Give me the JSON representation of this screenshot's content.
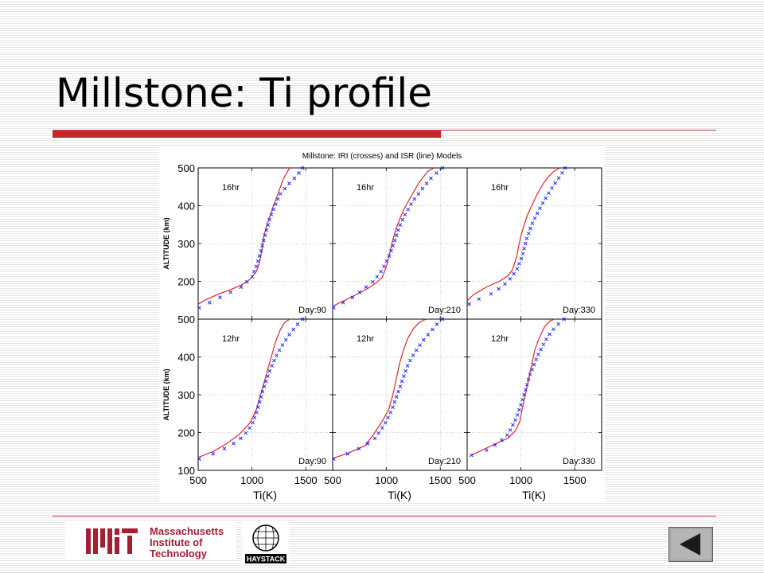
{
  "slide": {
    "title": "Millstone: Ti profile"
  },
  "logos": {
    "mit_text": [
      "Massachusetts",
      "Institute of",
      "Technology"
    ],
    "haystack_text": "HAYSTACK"
  },
  "navigation": {
    "back_icon": "triangle-left-icon"
  },
  "colors": {
    "title_rule": "#c0292b",
    "isr_line": "#e0252b",
    "iri_crosses": "#1a2cff",
    "mit_red": "#a31f34"
  },
  "chart_data": {
    "type": "line",
    "title": "Millstone: IRI (crosses) and ISR (line) Models",
    "ylabel": "ALTITUDE (km)",
    "xlabel": "Ti(K)",
    "xlim": [
      500,
      1750
    ],
    "ylim": [
      100,
      500
    ],
    "x_ticks": [
      500,
      1000,
      1500
    ],
    "y_ticks": [
      100,
      200,
      300,
      400,
      500
    ],
    "grid": true,
    "panels": [
      {
        "hour_label": "16hr",
        "day_label": "Day:90",
        "isr": {
          "x": [
            505,
            560,
            680,
            800,
            900,
            980,
            1040,
            1070,
            1090,
            1110,
            1140,
            1170,
            1200,
            1240,
            1290,
            1350
          ],
          "y": [
            140,
            150,
            165,
            178,
            190,
            205,
            225,
            250,
            280,
            320,
            350,
            375,
            400,
            430,
            470,
            500
          ]
        },
        "iri": {
          "x": [
            510,
            650,
            900,
            1000,
            1040,
            1080,
            1110,
            1140,
            1170,
            1200,
            1260,
            1350,
            1420,
            1470
          ],
          "y": [
            130,
            150,
            185,
            210,
            240,
            275,
            310,
            340,
            370,
            390,
            430,
            460,
            480,
            500
          ]
        }
      },
      {
        "hour_label": "16hr",
        "day_label": "Day:210",
        "isr": {
          "x": [
            505,
            600,
            720,
            820,
            900,
            960,
            1000,
            1030,
            1060,
            1090,
            1130,
            1170,
            1230,
            1300,
            1380,
            1440
          ],
          "y": [
            135,
            148,
            165,
            180,
            195,
            210,
            240,
            275,
            310,
            340,
            370,
            395,
            425,
            460,
            490,
            500
          ]
        },
        "iri": {
          "x": [
            510,
            700,
            880,
            960,
            1030,
            1080,
            1120,
            1170,
            1240,
            1320,
            1420,
            1520
          ],
          "y": [
            130,
            160,
            200,
            230,
            270,
            310,
            345,
            375,
            410,
            440,
            475,
            500
          ]
        }
      },
      {
        "hour_label": "16hr",
        "day_label": "Day:330",
        "isr": {
          "x": [
            505,
            560,
            680,
            800,
            880,
            920,
            960,
            980,
            1000,
            1030,
            1060,
            1100,
            1150,
            1200,
            1250,
            1300,
            1360
          ],
          "y": [
            150,
            165,
            185,
            200,
            215,
            230,
            265,
            295,
            320,
            350,
            375,
            400,
            430,
            455,
            475,
            490,
            500
          ]
        },
        "iri": {
          "x": [
            520,
            620,
            750,
            880,
            960,
            1010,
            1050,
            1100,
            1170,
            1250,
            1330,
            1380,
            1410
          ],
          "y": [
            140,
            155,
            170,
            200,
            230,
            265,
            310,
            350,
            390,
            430,
            465,
            485,
            500
          ]
        }
      },
      {
        "hour_label": "12hr",
        "day_label": "Day:90",
        "isr": {
          "x": [
            505,
            640,
            760,
            880,
            980,
            1040,
            1080,
            1110,
            1140,
            1180,
            1220,
            1260,
            1300,
            1350
          ],
          "y": [
            135,
            150,
            170,
            195,
            225,
            260,
            300,
            330,
            360,
            400,
            440,
            470,
            490,
            500
          ]
        },
        "iri": {
          "x": [
            510,
            650,
            800,
            920,
            1000,
            1050,
            1100,
            1160,
            1220,
            1280,
            1350,
            1420,
            1470
          ],
          "y": [
            130,
            145,
            165,
            190,
            220,
            260,
            310,
            360,
            400,
            430,
            460,
            485,
            500
          ]
        }
      },
      {
        "hour_label": "12hr",
        "day_label": "Day:210",
        "isr": {
          "x": [
            505,
            640,
            800,
            880,
            960,
            1020,
            1060,
            1090,
            1120,
            1160,
            1200,
            1250,
            1300,
            1350,
            1390
          ],
          "y": [
            132,
            145,
            165,
            195,
            230,
            260,
            300,
            340,
            380,
            420,
            450,
            475,
            490,
            498,
            500
          ]
        },
        "iri": {
          "x": [
            510,
            700,
            880,
            980,
            1050,
            1100,
            1150,
            1200,
            1260,
            1330,
            1420,
            1480,
            1520
          ],
          "y": [
            130,
            150,
            180,
            220,
            260,
            300,
            340,
            380,
            410,
            440,
            470,
            490,
            500
          ]
        }
      },
      {
        "hour_label": "12hr",
        "day_label": "Day:330",
        "isr": {
          "x": [
            540,
            650,
            760,
            880,
            950,
            990,
            1010,
            1040,
            1070,
            1100,
            1130,
            1170,
            1220,
            1270,
            1310
          ],
          "y": [
            140,
            155,
            170,
            185,
            205,
            230,
            260,
            300,
            340,
            380,
            420,
            450,
            480,
            495,
            500
          ]
        },
        "iri": {
          "x": [
            540,
            660,
            780,
            880,
            960,
            1030,
            1080,
            1150,
            1220,
            1290,
            1360,
            1400
          ],
          "y": [
            140,
            150,
            170,
            195,
            240,
            300,
            350,
            400,
            440,
            470,
            490,
            500
          ]
        }
      }
    ]
  }
}
